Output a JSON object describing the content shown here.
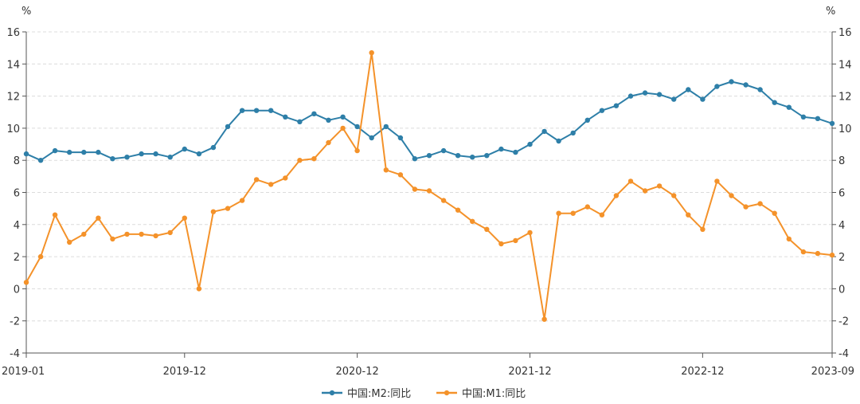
{
  "chart_data": {
    "type": "line",
    "left_unit": "%",
    "right_unit": "%",
    "ylim": [
      -4,
      16
    ],
    "y_ticks": [
      -4,
      -2,
      0,
      2,
      4,
      6,
      8,
      10,
      12,
      14,
      16
    ],
    "y_tick_labels": [
      "-4",
      "-2",
      "0",
      "2",
      "4",
      "6",
      "8",
      "10",
      "12",
      "14",
      "16"
    ],
    "grid": "horizontal dashed",
    "legend_position": "bottom-center",
    "x": [
      "2019-01",
      "2019-02",
      "2019-03",
      "2019-04",
      "2019-05",
      "2019-06",
      "2019-07",
      "2019-08",
      "2019-09",
      "2019-10",
      "2019-11",
      "2019-12",
      "2020-01",
      "2020-02",
      "2020-03",
      "2020-04",
      "2020-05",
      "2020-06",
      "2020-07",
      "2020-08",
      "2020-09",
      "2020-10",
      "2020-11",
      "2020-12",
      "2021-01",
      "2021-02",
      "2021-03",
      "2021-04",
      "2021-05",
      "2021-06",
      "2021-07",
      "2021-08",
      "2021-09",
      "2021-10",
      "2021-11",
      "2021-12",
      "2022-01",
      "2022-02",
      "2022-03",
      "2022-04",
      "2022-05",
      "2022-06",
      "2022-07",
      "2022-08",
      "2022-09",
      "2022-10",
      "2022-11",
      "2022-12",
      "2023-01",
      "2023-02",
      "2023-03",
      "2023-04",
      "2023-05",
      "2023-06",
      "2023-07",
      "2023-08",
      "2023-09"
    ],
    "x_tick_labels": [
      "2019-01",
      "2019-12",
      "2020-12",
      "2021-12",
      "2022-12",
      "2023-09"
    ],
    "series": [
      {
        "name": "中国:M2:同比",
        "color": "#2e7fa8",
        "values": [
          8.4,
          8.0,
          8.6,
          8.5,
          8.5,
          8.5,
          8.1,
          8.2,
          8.4,
          8.4,
          8.2,
          8.7,
          8.4,
          8.8,
          10.1,
          11.1,
          11.1,
          11.1,
          10.7,
          10.4,
          10.9,
          10.5,
          10.7,
          10.1,
          9.4,
          10.1,
          9.4,
          8.1,
          8.3,
          8.6,
          8.3,
          8.2,
          8.3,
          8.7,
          8.5,
          9.0,
          9.8,
          9.2,
          9.7,
          10.5,
          11.1,
          11.4,
          12.0,
          12.2,
          12.1,
          11.8,
          12.4,
          11.8,
          12.6,
          12.9,
          12.7,
          12.4,
          11.6,
          11.3,
          10.7,
          10.6,
          10.3
        ]
      },
      {
        "name": "中国:M1:同比",
        "color": "#f4922a",
        "values": [
          0.4,
          2.0,
          4.6,
          2.9,
          3.4,
          4.4,
          3.1,
          3.4,
          3.4,
          3.3,
          3.5,
          4.4,
          0.0,
          4.8,
          5.0,
          5.5,
          6.8,
          6.5,
          6.9,
          8.0,
          8.1,
          9.1,
          10.0,
          8.6,
          14.7,
          7.4,
          7.1,
          6.2,
          6.1,
          5.5,
          4.9,
          4.2,
          3.7,
          2.8,
          3.0,
          3.5,
          -1.9,
          4.7,
          4.7,
          5.1,
          4.6,
          5.8,
          6.7,
          6.1,
          6.4,
          5.8,
          4.6,
          3.7,
          6.7,
          5.8,
          5.1,
          5.3,
          4.7,
          3.1,
          2.3,
          2.2,
          2.1
        ]
      }
    ]
  }
}
